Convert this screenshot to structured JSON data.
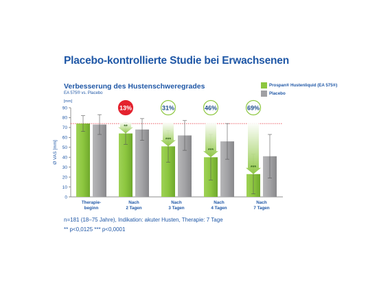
{
  "title": "Placebo-kontrollierte Studie bei Erwachsenen",
  "chart_data": {
    "type": "bar",
    "subtitle": "Verbesserung des Hustenschweregrades",
    "caption": "EA 575® vs. Placebo",
    "ylabel": "Ø VAS [mm]",
    "yunit": "[mm]",
    "ylim": [
      0,
      90
    ],
    "yticks": [
      0,
      10,
      20,
      30,
      40,
      50,
      60,
      70,
      80,
      90
    ],
    "grid": false,
    "legend_position": "top-right",
    "reference_line": 74,
    "categories": [
      [
        "Therapie-",
        "beginn"
      ],
      [
        "Nach",
        "2 Tagen"
      ],
      [
        "Nach",
        "3 Tagen"
      ],
      [
        "Nach",
        "4 Tagen"
      ],
      [
        "Nach",
        "7 Tagen"
      ]
    ],
    "series": [
      {
        "name": "Prospan® Hustenliquid (EA 575®)",
        "color": "#8cc63f",
        "values": [
          74,
          64,
          51,
          40,
          23
        ],
        "errors": [
          8,
          11,
          16,
          23,
          20
        ],
        "significance": [
          "",
          "**",
          "***",
          "***",
          "***"
        ]
      },
      {
        "name": "Placebo",
        "color": "#a0a0a3",
        "values": [
          73,
          68,
          62,
          56,
          41
        ],
        "errors": [
          10,
          11,
          15,
          18,
          22
        ]
      }
    ],
    "improvement_labels": [
      "",
      "13%",
      "31%",
      "46%",
      "69%"
    ],
    "improvement_highlight": "13%",
    "colors": {
      "text": "#1f57a6",
      "green": "#8cc63f",
      "gray": "#a0a0a3",
      "red": "#e4222e",
      "refline": "#e4222e"
    }
  },
  "footnotes": {
    "line1": "n=181 (18–75 Jahre), Indikation: akuter Husten, Therapie: 7 Tage",
    "line2": "** p<0,0125   *** p<0,0001"
  }
}
